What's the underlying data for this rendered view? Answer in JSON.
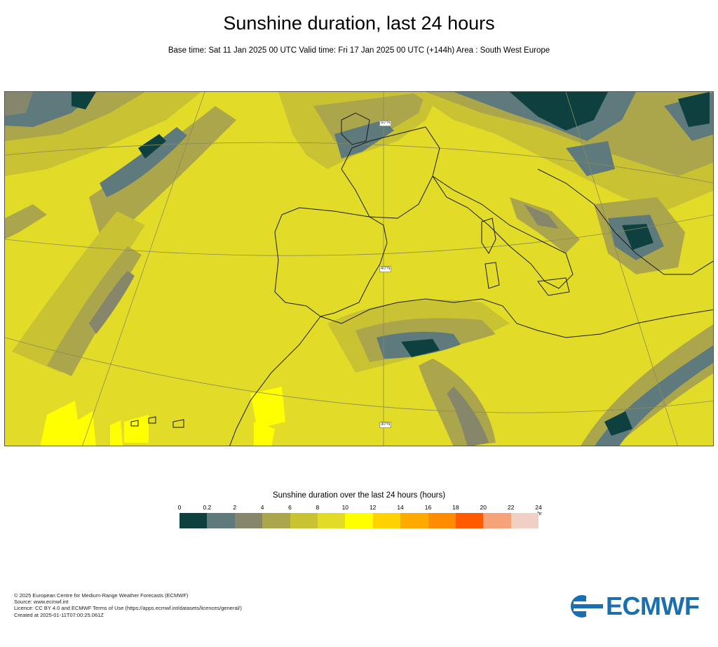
{
  "header": {
    "title": "Sunshine duration, last 24 hours",
    "subtitle": "Base time: Sat 11 Jan 2025 00 UTC Valid time: Fri 17 Jan 2025 00 UTC (+144h) Area : South West Europe"
  },
  "map": {
    "area": "South West Europe",
    "lat_labels": [
      "50°N",
      "40°N",
      "30°N"
    ]
  },
  "legend": {
    "title": "Sunshine duration over the last 24 hours (hours)",
    "unit": "-hr",
    "ticks": [
      "0",
      "0.2",
      "2",
      "4",
      "6",
      "8",
      "10",
      "12",
      "14",
      "16",
      "18",
      "20",
      "22",
      "24"
    ],
    "colors": [
      "#0f4040",
      "#5e7a7c",
      "#86866a",
      "#aba64c",
      "#c9c232",
      "#e2dc28",
      "#ffff00",
      "#ffd200",
      "#ffaa00",
      "#ff8c00",
      "#ff5a00",
      "#f7a37a",
      "#f0d0c4"
    ]
  },
  "footer": {
    "lines": [
      "© 2025 European Centre for Medium-Range Weather Forecasts (ECMWF)",
      "Source: www.ecmwf.int",
      "Licence: CC BY 4.0 and ECMWF Terms of Use (https://apps.ecmwf.int/datasets/licences/general/)",
      "Created at 2025-01-11T07:00:25.061Z"
    ]
  },
  "logo": {
    "text": "ECMWF",
    "color": "#1a6fb0"
  }
}
